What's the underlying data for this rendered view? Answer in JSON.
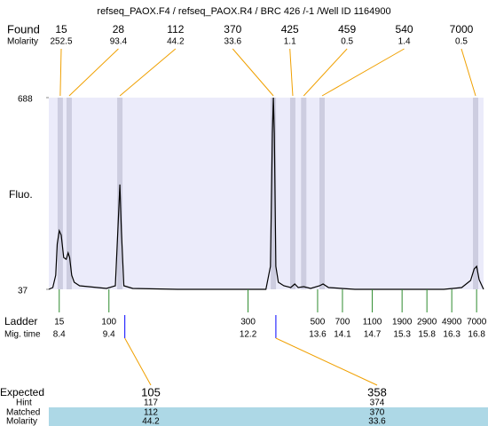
{
  "chart_data": {
    "type": "electropherogram",
    "title": "refseq_PAOX.F4 / refseq_PAOX.R4 / BRC 426 /-1 /Well ID 1164900",
    "ylabel": "Fluo.",
    "ylim": [
      37,
      688
    ],
    "yticks": [
      37,
      688
    ],
    "xlim": [
      8.19,
      16.94
    ],
    "plot_color": "#ebebfa",
    "band_color": "#cdcde0",
    "connector_color": "#f0a000",
    "ladder_color": "#2e8b2e",
    "expected_color": "#0000ff",
    "table_color": "#add8e6",
    "found": {
      "label": "Found",
      "molarity_label": "Molarity",
      "sizes": [
        15,
        28,
        112,
        370,
        425,
        459,
        540,
        7000
      ],
      "molarity": [
        252.5,
        93.4,
        44.2,
        33.6,
        1.1,
        0.5,
        1.4,
        0.5
      ],
      "x": [
        8.42,
        8.6,
        9.62,
        12.71,
        13.1,
        13.32,
        13.69,
        16.78
      ]
    },
    "ladder": {
      "label": "Ladder",
      "time_label": "Mig. time",
      "sizes": [
        15,
        100,
        300,
        500,
        700,
        1100,
        1900,
        2900,
        4900,
        7000
      ],
      "x": [
        8.4,
        9.4,
        12.2,
        13.6,
        14.1,
        14.7,
        15.3,
        15.8,
        16.3,
        16.8
      ]
    },
    "expected": {
      "label": "Expected",
      "hint_label": "Hint",
      "matched_label": "Matched",
      "molarity_label": "Molarity",
      "sizes": [
        105,
        358
      ],
      "x": [
        9.72,
        12.76
      ],
      "hint": [
        117,
        374
      ],
      "matched": [
        112,
        370
      ],
      "molarity": [
        44.2,
        33.6
      ]
    },
    "trace": {
      "color": "#000000",
      "x": [
        8.19,
        8.27,
        8.33,
        8.36,
        8.4,
        8.44,
        8.49,
        8.54,
        8.58,
        8.61,
        8.65,
        8.7,
        8.81,
        8.99,
        9.35,
        9.53,
        9.58,
        9.62,
        9.65,
        9.7,
        9.88,
        10.78,
        11.67,
        12.56,
        12.65,
        12.69,
        12.71,
        12.73,
        12.76,
        12.81,
        12.92,
        13.06,
        13.14,
        13.21,
        13.32,
        13.46,
        13.64,
        13.71,
        13.82,
        14.35,
        15.25,
        16.14,
        16.5,
        16.68,
        16.75,
        16.8,
        16.85,
        16.94
      ],
      "values": [
        37,
        43,
        85,
        191,
        236,
        221,
        145,
        139,
        161,
        145,
        85,
        61,
        49,
        46,
        40,
        49,
        236,
        393,
        236,
        49,
        40,
        37,
        37,
        37,
        115,
        567,
        688,
        567,
        115,
        61,
        49,
        43,
        55,
        43,
        46,
        40,
        49,
        55,
        43,
        37,
        37,
        37,
        43,
        67,
        106,
        115,
        70,
        37
      ]
    }
  }
}
